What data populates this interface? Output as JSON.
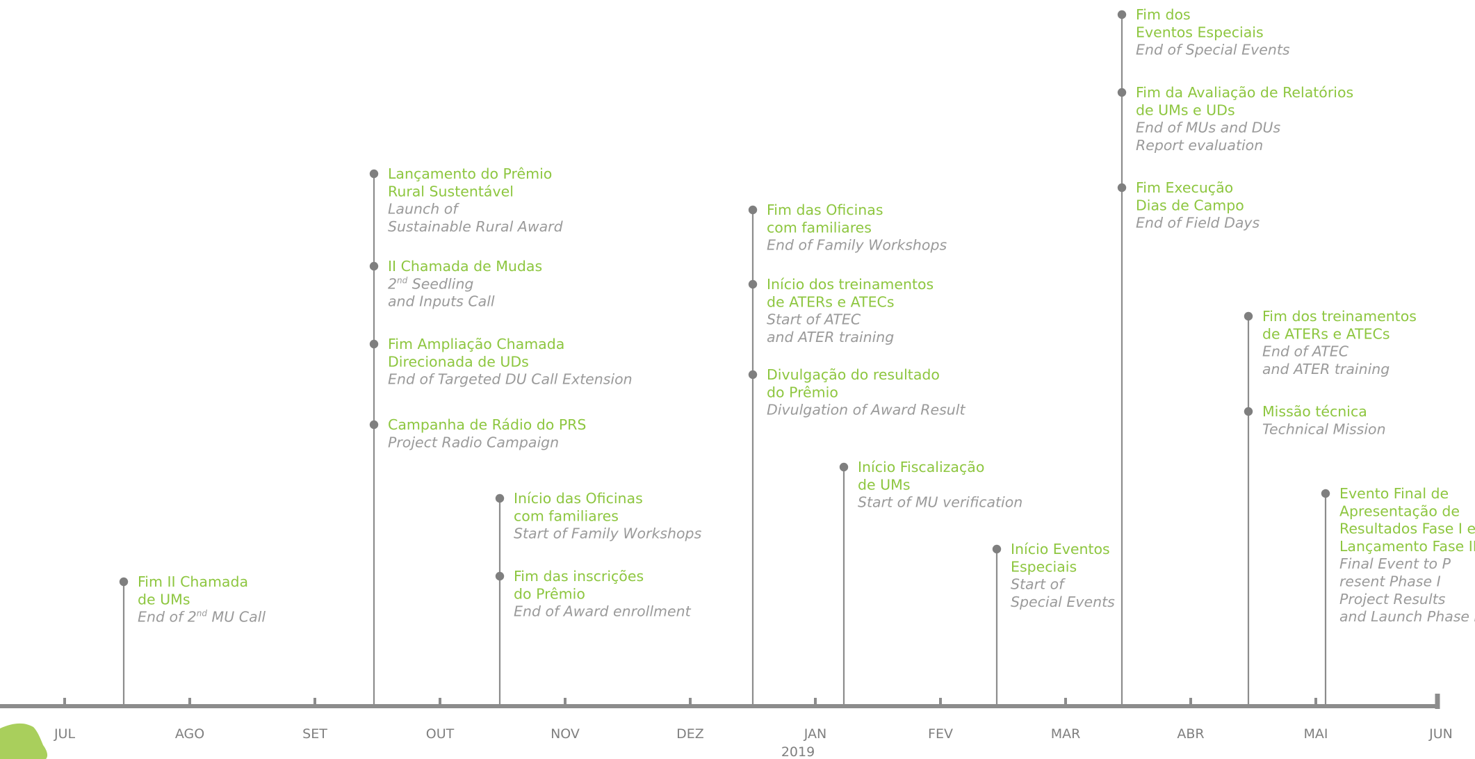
{
  "colors": {
    "axis": "#8c8c8c",
    "dot": "#7f7f7f",
    "portuguese_text": "#8dc63f",
    "english_text": "#9a9a9a",
    "leaf": "#a9cf5c"
  },
  "axis": {
    "months": [
      "JUL",
      "AGO",
      "SET",
      "OUT",
      "NOV",
      "DEZ",
      "JAN",
      "FEV",
      "MAR",
      "ABR",
      "MAI",
      "JUN"
    ],
    "year_label": "2019"
  },
  "events": [
    {
      "month": 0.47,
      "pt": [
        "Fim II Chamada",
        "de UMs"
      ],
      "en": [
        [
          "End of 2",
          "nd",
          " MU Call"
        ]
      ]
    },
    {
      "month": 2.47,
      "pt": [
        "Lançamento do Prêmio",
        "Rural Sustentável"
      ],
      "en": [
        "Launch of",
        "Sustainable Rural Award"
      ]
    },
    {
      "month": 2.47,
      "pt": [
        "II Chamada de Mudas"
      ],
      "en": [
        [
          "2",
          "nd",
          " Seedling"
        ],
        "and Inputs Call"
      ]
    },
    {
      "month": 2.47,
      "pt": [
        "Fim Ampliação Chamada",
        "Direcionada de UDs"
      ],
      "en": [
        "End of Targeted DU Call Extension"
      ]
    },
    {
      "month": 2.47,
      "pt": [
        "Campanha de Rádio do PRS"
      ],
      "en": [
        "Project Radio Campaign"
      ]
    },
    {
      "month": 3.48,
      "pt": [
        "Início das Oficinas",
        "com familiares"
      ],
      "en": [
        "Start of Family Workshops"
      ]
    },
    {
      "month": 3.48,
      "pt": [
        "Fim das inscrições",
        "do Prêmio"
      ],
      "en": [
        "End of Award enrollment"
      ]
    },
    {
      "month": 5.5,
      "pt": [
        "Fim das Oficinas",
        "com familiares"
      ],
      "en": [
        "End of Family Workshops"
      ]
    },
    {
      "month": 5.5,
      "pt": [
        "Início dos treinamentos",
        "de ATERs e ATECs"
      ],
      "en": [
        "Start of ATEC",
        "and ATER training"
      ]
    },
    {
      "month": 5.5,
      "pt": [
        "Divulgação do resultado",
        "do Prêmio"
      ],
      "en": [
        "Divulgation of Award Result"
      ]
    },
    {
      "month": 6.23,
      "pt": [
        "Início Fiscalização",
        "de UMs"
      ],
      "en": [
        "Start of MU verification"
      ]
    },
    {
      "month": 7.45,
      "pt": [
        "Início Eventos",
        "Especiais"
      ],
      "en": [
        "Start of",
        "Special Events"
      ]
    },
    {
      "month": 8.45,
      "pt": [
        "Fim dos",
        "Eventos Especiais"
      ],
      "en": [
        "End of Special Events"
      ]
    },
    {
      "month": 8.45,
      "pt": [
        "Fim da Avaliação de Relatórios",
        "de UMs e UDs"
      ],
      "en": [
        "End of MUs  and DUs",
        "Report evaluation"
      ]
    },
    {
      "month": 8.45,
      "pt": [
        "Fim Execução",
        "Dias de Campo"
      ],
      "en": [
        "End of Field Days"
      ]
    },
    {
      "month": 9.46,
      "pt": [
        "Fim dos treinamentos",
        "de ATERs e ATECs"
      ],
      "en": [
        "End of ATEC",
        "and ATER training"
      ]
    },
    {
      "month": 9.46,
      "pt": [
        "Missão técnica"
      ],
      "en": [
        "Technical Mission"
      ]
    },
    {
      "month": 10.08,
      "pt": [
        "Evento Final de",
        "Apresentação de",
        "Resultados Fase I e",
        "Lançamento Fase II"
      ],
      "en": [
        "Final Event to P",
        "resent Phase I",
        "Project Results",
        "and Launch Phase II"
      ]
    }
  ]
}
